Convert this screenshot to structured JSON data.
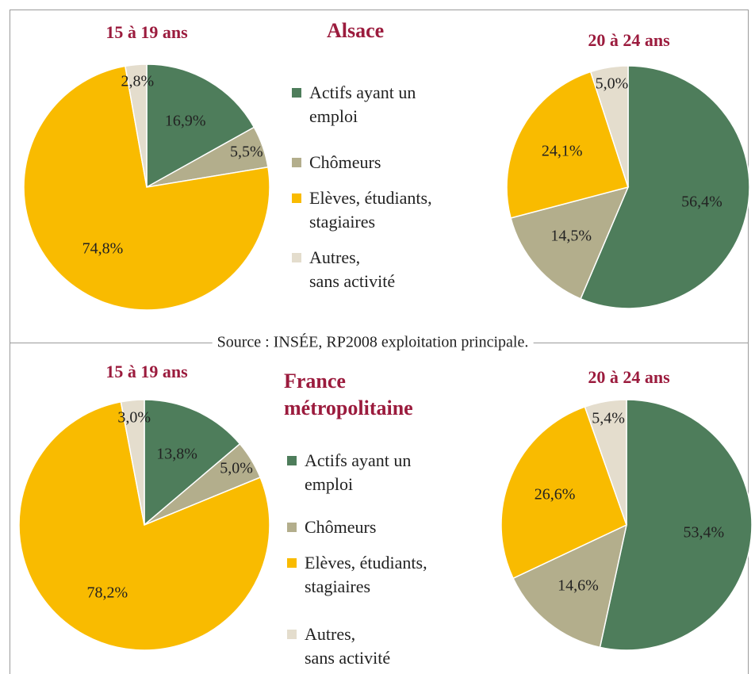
{
  "chart_data": [
    {
      "type": "pie",
      "title": "15 à 19 ans",
      "categories": [
        "Actifs ayant un\nemploi",
        "Chômeurs",
        "Elèves, étudiants,\nstagiaires",
        "Autres,\nsans activité"
      ],
      "values": [
        16.9,
        5.5,
        74.8,
        2.8
      ],
      "value_labels": [
        "16,9%",
        "5,5%",
        "74,8%",
        "2,8%"
      ],
      "colors": [
        "#4e7d5b",
        "#b3ae8c",
        "#f9bb00",
        "#e4ddcd"
      ]
    },
    {
      "type": "pie",
      "title": "20 à 24 ans",
      "categories": [
        "Actifs ayant un\nemploi",
        "Chômeurs",
        "Elèves, étudiants,\nstagiaires",
        "Autres,\nsans activité"
      ],
      "values": [
        56.4,
        14.5,
        24.1,
        5.0
      ],
      "value_labels": [
        "56,4%",
        "14,5%",
        "24,1%",
        "5,0%"
      ],
      "colors": [
        "#4e7d5b",
        "#b3ae8c",
        "#f9bb00",
        "#e4ddcd"
      ]
    },
    {
      "type": "pie",
      "title": "15 à 19 ans",
      "categories": [
        "Actifs ayant un\nemploi",
        "Chômeurs",
        "Elèves, étudiants,\nstagiaires",
        "Autres,\nsans activité"
      ],
      "values": [
        13.8,
        5.0,
        78.2,
        3.0
      ],
      "value_labels": [
        "13,8%",
        "5,0%",
        "78,2%",
        "3,0%"
      ],
      "colors": [
        "#4e7d5b",
        "#b3ae8c",
        "#f9bb00",
        "#e4ddcd"
      ]
    },
    {
      "type": "pie",
      "title": "20 à 24 ans",
      "categories": [
        "Actifs ayant un\nemploi",
        "Chômeurs",
        "Elèves, étudiants,\nstagiaires",
        "Autres,\nsans activité"
      ],
      "values": [
        53.4,
        14.6,
        26.6,
        5.4
      ],
      "value_labels": [
        "53,4%",
        "14,6%",
        "26,6%",
        "5,4%"
      ],
      "colors": [
        "#4e7d5b",
        "#b3ae8c",
        "#f9bb00",
        "#e4ddcd"
      ]
    }
  ],
  "panels": [
    {
      "heading": "Alsace"
    },
    {
      "heading": "France\nmétropolitaine"
    }
  ],
  "source": "Source : INSÉE, RP2008 exploitation principale."
}
